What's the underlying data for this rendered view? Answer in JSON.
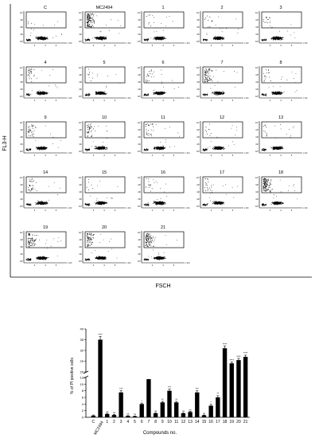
{
  "flow_cytometry": {
    "y_axis_label": "FL3-H",
    "x_axis_label": "FSCH",
    "x_tick_labels": [
      "2",
      "4",
      "6"
    ],
    "x_exponent_label": "x 10⁵",
    "y_tick_labels": [
      "10⁰",
      "10¹",
      "10²",
      "10³",
      "10⁴"
    ],
    "panels": [
      {
        "label": "C",
        "pi_fraction": 0.01
      },
      {
        "label": "MC2494",
        "pi_fraction": 0.4
      },
      {
        "label": "1",
        "pi_fraction": 0.02
      },
      {
        "label": "2",
        "pi_fraction": 0.03
      },
      {
        "label": "3",
        "pi_fraction": 0.04
      },
      {
        "label": "4",
        "pi_fraction": 0.08
      },
      {
        "label": "5",
        "pi_fraction": 0.02
      },
      {
        "label": "6",
        "pi_fraction": 0.06
      },
      {
        "label": "7",
        "pi_fraction": 0.22
      },
      {
        "label": "8",
        "pi_fraction": 0.05
      },
      {
        "label": "9",
        "pi_fraction": 0.1
      },
      {
        "label": "10",
        "pi_fraction": 0.12
      },
      {
        "label": "11",
        "pi_fraction": 0.08
      },
      {
        "label": "12",
        "pi_fraction": 0.03
      },
      {
        "label": "13",
        "pi_fraction": 0.03
      },
      {
        "label": "14",
        "pi_fraction": 0.09
      },
      {
        "label": "15",
        "pi_fraction": 0.02
      },
      {
        "label": "16",
        "pi_fraction": 0.04
      },
      {
        "label": "17",
        "pi_fraction": 0.06
      },
      {
        "label": "18",
        "pi_fraction": 0.38
      },
      {
        "label": "19",
        "pi_fraction": 0.25
      },
      {
        "label": "20",
        "pi_fraction": 0.22
      },
      {
        "label": "21",
        "pi_fraction": 0.3
      }
    ]
  },
  "chart_data": {
    "type": "bar",
    "categories": [
      "C",
      "MC2494",
      "1",
      "2",
      "3",
      "4",
      "5",
      "6",
      "7",
      "8",
      "9",
      "10",
      "11",
      "12",
      "13",
      "14",
      "15",
      "16",
      "17",
      "18",
      "19",
      "20",
      "21"
    ],
    "values": [
      0.5,
      35,
      1,
      0.7,
      7.5,
      0.4,
      0.3,
      4,
      11.5,
      1.2,
      4.5,
      8,
      4.5,
      1.2,
      1.6,
      7.5,
      0.6,
      3.5,
      6,
      31,
      24,
      25.5,
      27
    ],
    "errors": [
      0.2,
      1.5,
      0.2,
      0.2,
      0.5,
      0.1,
      0.1,
      0.3,
      0.6,
      0.2,
      0.3,
      0.5,
      0.3,
      0.2,
      0.2,
      0.5,
      0.1,
      0.4,
      0.5,
      1.0,
      0.6,
      0.8,
      0.8
    ],
    "significance": [
      "",
      "****",
      "ns",
      "ns",
      "***",
      "ns",
      "ns",
      "*",
      "****",
      "ns",
      "**",
      "***",
      "**",
      "ns",
      "ns",
      "***",
      "ns",
      "*",
      "**",
      "****",
      "****",
      "****",
      "****"
    ],
    "ylabel": "% of PI positive cells",
    "xlabel": "Compounds no.",
    "y_axis_break": [
      12,
      20
    ],
    "ylim": [
      0,
      40
    ],
    "y_ticks": [
      0,
      2,
      4,
      6,
      8,
      10,
      12,
      20,
      25,
      30,
      35,
      40
    ],
    "bar_color": "#000000"
  }
}
